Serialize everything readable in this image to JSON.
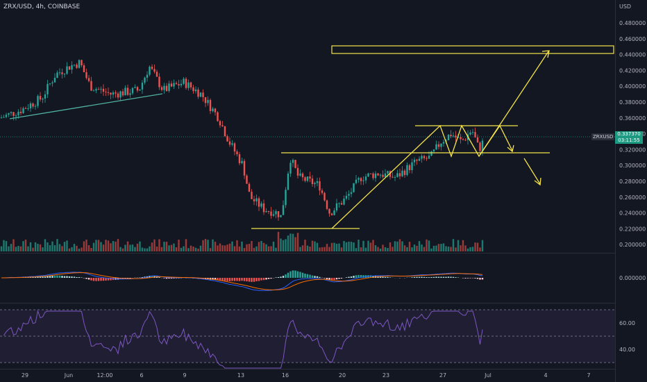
{
  "header": {
    "title": "ZRX/USD, 4h, COINBASE"
  },
  "price_axis": {
    "currency": "USD",
    "ticks": [
      "0.480000",
      "0.460000",
      "0.440000",
      "0.420000",
      "0.400000",
      "0.380000",
      "0.360000",
      "0.340000",
      "0.320000",
      "0.300000",
      "0.280000",
      "0.260000",
      "0.240000",
      "0.220000",
      "0.200000"
    ],
    "current_symbol": "ZRXUSD",
    "current_price": "0.337370",
    "countdown": "03:11:55"
  },
  "macd_axis": {
    "ticks": [
      "0.000000"
    ]
  },
  "rsi_axis": {
    "ticks": [
      "60.00",
      "40.00"
    ]
  },
  "time_axis": {
    "ticks": [
      "29",
      "Jun",
      "12:00",
      "6",
      "9",
      "13",
      "16",
      "20",
      "23",
      "27",
      "Jul",
      "4",
      "7"
    ]
  },
  "colors": {
    "bg": "#131722",
    "up": "#26a69a",
    "down": "#ef5350",
    "drawing": "#f5e34a",
    "trend": "#4fb3a3",
    "rsi": "#7e57c2",
    "grid": "#1e222d"
  }
}
